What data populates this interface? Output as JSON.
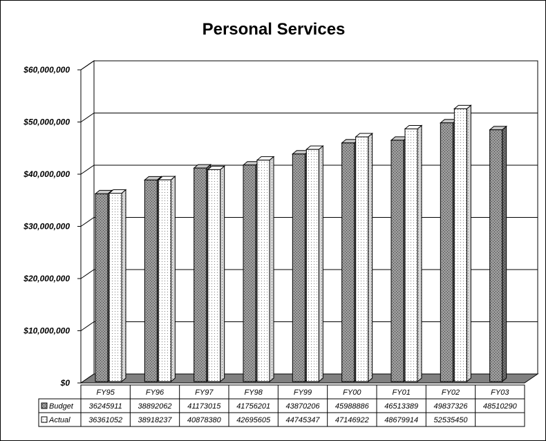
{
  "chart_data": {
    "type": "bar",
    "title": "Personal Services",
    "categories": [
      "FY95",
      "FY96",
      "FY97",
      "FY98",
      "FY99",
      "FY00",
      "FY01",
      "FY02",
      "FY03"
    ],
    "series": [
      {
        "name": "Budget",
        "values": [
          36245911,
          38892062,
          41173015,
          41756201,
          43870206,
          45988886,
          46513389,
          49837326,
          48510290
        ]
      },
      {
        "name": "Actual",
        "values": [
          36361052,
          38918237,
          40878380,
          42695605,
          44745347,
          47146922,
          48679914,
          52535450,
          null
        ]
      }
    ],
    "ylim": [
      0,
      60000000
    ],
    "yticks": [
      0,
      10000000,
      20000000,
      30000000,
      40000000,
      50000000,
      60000000
    ],
    "ytick_labels": [
      "$0",
      "$10,000,000",
      "$20,000,000",
      "$30,000,000",
      "$40,000,000",
      "$50,000,000",
      "$60,000,000"
    ],
    "grid": true,
    "legend": "data table",
    "data_table": {
      "rows": [
        {
          "label": "Budget",
          "cells": [
            "36245911",
            "38892062",
            "41173015",
            "41756201",
            "43870206",
            "45988886",
            "46513389",
            "49837326",
            "48510290"
          ]
        },
        {
          "label": "Actual",
          "cells": [
            "36361052",
            "38918237",
            "40878380",
            "42695605",
            "44745347",
            "47146922",
            "48679914",
            "52535450",
            ""
          ]
        }
      ]
    },
    "colors": {
      "budget": "#808080",
      "actual": "#ffffff",
      "grid": "#000000",
      "floor": "#808080"
    }
  }
}
